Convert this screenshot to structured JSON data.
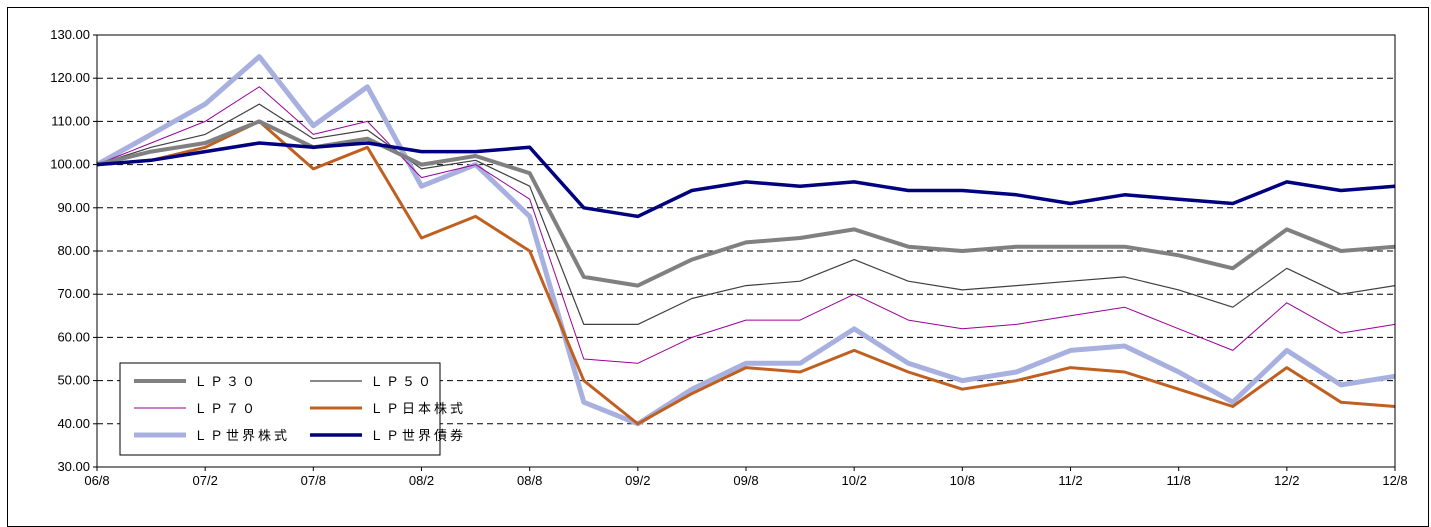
{
  "chart_data": {
    "type": "line",
    "title": "",
    "xlabel": "",
    "ylabel": "",
    "ylim": [
      30,
      130
    ],
    "yticks": [
      "130.00",
      "120.00",
      "110.00",
      "100.00",
      "90.00",
      "80.00",
      "70.00",
      "60.00",
      "50.00",
      "40.00",
      "30.00"
    ],
    "xticks": [
      "06/8",
      "07/2",
      "07/8",
      "08/2",
      "08/8",
      "09/2",
      "09/8",
      "10/2",
      "10/8",
      "11/2",
      "11/8",
      "12/2",
      "12/8"
    ],
    "grid": "horizontal dashed",
    "legend_position": "bottom-left",
    "x": [
      "06/8",
      "06/11",
      "07/2",
      "07/5",
      "07/8",
      "07/11",
      "08/2",
      "08/5",
      "08/8",
      "08/11",
      "09/2",
      "09/5",
      "09/8",
      "09/11",
      "10/2",
      "10/5",
      "10/8",
      "10/11",
      "11/2",
      "11/5",
      "11/8",
      "11/11",
      "12/2",
      "12/5",
      "12/8"
    ],
    "series": [
      {
        "name": "ＬＰ３０",
        "color": "#808080",
        "values": [
          100,
          103,
          105,
          110,
          104,
          106,
          100,
          102,
          98,
          74,
          72,
          78,
          82,
          83,
          85,
          81,
          80,
          81,
          81,
          81,
          79,
          76,
          85,
          80,
          81
        ]
      },
      {
        "name": "ＬＰ５０",
        "color": "#404040",
        "values": [
          100,
          104,
          107,
          114,
          106,
          108,
          99,
          101,
          95,
          63,
          63,
          69,
          72,
          73,
          78,
          73,
          71,
          72,
          73,
          74,
          71,
          67,
          76,
          70,
          72
        ]
      },
      {
        "name": "ＬＰ７０",
        "color": "#990099",
        "values": [
          100,
          105,
          110,
          118,
          107,
          110,
          97,
          100,
          92,
          55,
          54,
          60,
          64,
          64,
          70,
          64,
          62,
          63,
          65,
          67,
          62,
          57,
          68,
          61,
          63
        ]
      },
      {
        "name": "ＬＰ日本株式",
        "color": "#C06020",
        "values": [
          100,
          101,
          104,
          110,
          99,
          104,
          83,
          88,
          80,
          50,
          40,
          47,
          53,
          52,
          57,
          52,
          48,
          50,
          53,
          52,
          48,
          44,
          53,
          45,
          44
        ]
      },
      {
        "name": "ＬＰ世界株式",
        "color": "#A8B0E0",
        "values": [
          100,
          107,
          114,
          125,
          109,
          118,
          95,
          100,
          88,
          45,
          40,
          48,
          54,
          54,
          62,
          54,
          50,
          52,
          57,
          58,
          52,
          45,
          57,
          49,
          51
        ]
      },
      {
        "name": "ＬＰ世界債券",
        "color": "#000080",
        "values": [
          100,
          101,
          103,
          105,
          104,
          105,
          103,
          103,
          104,
          90,
          88,
          94,
          96,
          95,
          96,
          94,
          94,
          93,
          91,
          93,
          92,
          91,
          96,
          94,
          95
        ]
      }
    ]
  }
}
